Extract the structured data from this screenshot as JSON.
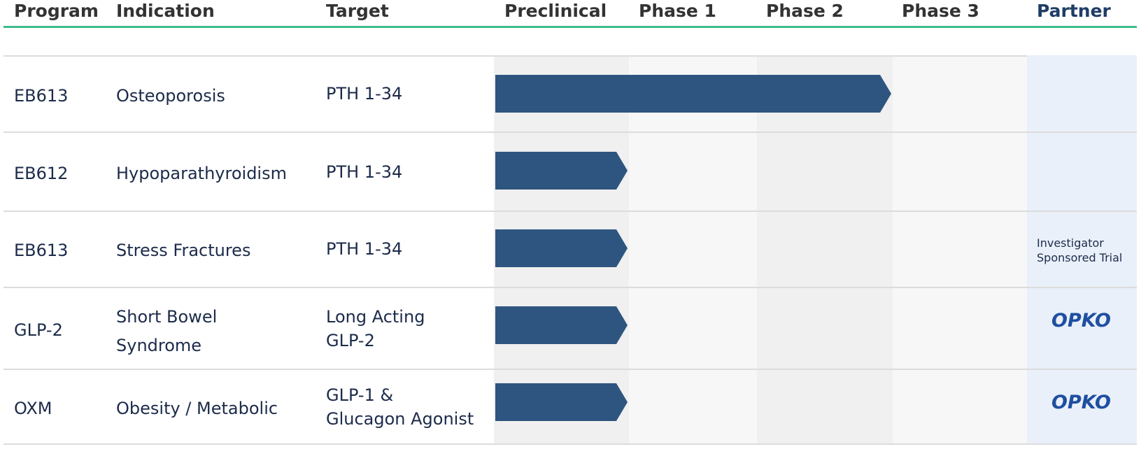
{
  "header": {
    "program": "Program",
    "indication": "Indication",
    "target": "Target",
    "preclinical": "Preclinical",
    "phase1": "Phase 1",
    "phase2": "Phase 2",
    "phase3": "Phase 3",
    "partner": "Partner"
  },
  "rows": [
    {
      "program": "EB613",
      "indication": [
        "Osteoporosis"
      ],
      "target": [
        "PTH 1-34"
      ],
      "partner_text": [],
      "partner_logo": ""
    },
    {
      "program": "EB612",
      "indication": [
        "Hypoparathyroidism"
      ],
      "target": [
        "PTH 1-34"
      ],
      "partner_text": [],
      "partner_logo": ""
    },
    {
      "program": "EB613",
      "indication": [
        "Stress Fractures"
      ],
      "target": [
        "PTH 1-34"
      ],
      "partner_text": [
        "Investigator",
        "Sponsored Trial"
      ],
      "partner_logo": ""
    },
    {
      "program": "GLP-2",
      "indication": [
        "Short Bowel",
        "Syndrome"
      ],
      "target": [
        "Long Acting",
        "GLP-2"
      ],
      "partner_text": [],
      "partner_logo": "OPKO"
    },
    {
      "program": "OXM",
      "indication": [
        "Obesity / Metabolic"
      ],
      "target": [
        "GLP-1 &",
        "Glucagon Agonist"
      ],
      "partner_text": [],
      "partner_logo": "OPKO"
    }
  ],
  "chart_data": {
    "type": "bar",
    "orientation": "horizontal",
    "categories": [
      "EB613 Osteoporosis",
      "EB612 Hypoparathyroidism",
      "EB613 Stress Fractures",
      "GLP-2 Short Bowel Syndrome",
      "OXM Obesity / Metabolic"
    ],
    "stages": [
      "Preclinical",
      "Phase 1",
      "Phase 2",
      "Phase 3"
    ],
    "values": [
      3,
      1,
      1,
      1,
      1
    ],
    "value_unit": "stages completed (Preclinical = 1 ... Phase 3 = 4)",
    "xlim": [
      0,
      4
    ]
  },
  "colors": {
    "bar": "#2e557f",
    "header_rule": "#3dbd8c",
    "stage_shade_dark": "#f0f0f0",
    "stage_shade_light": "#f7f7f7",
    "partner_bg": "#e9f0fa",
    "logo": "#1f4fa0"
  }
}
